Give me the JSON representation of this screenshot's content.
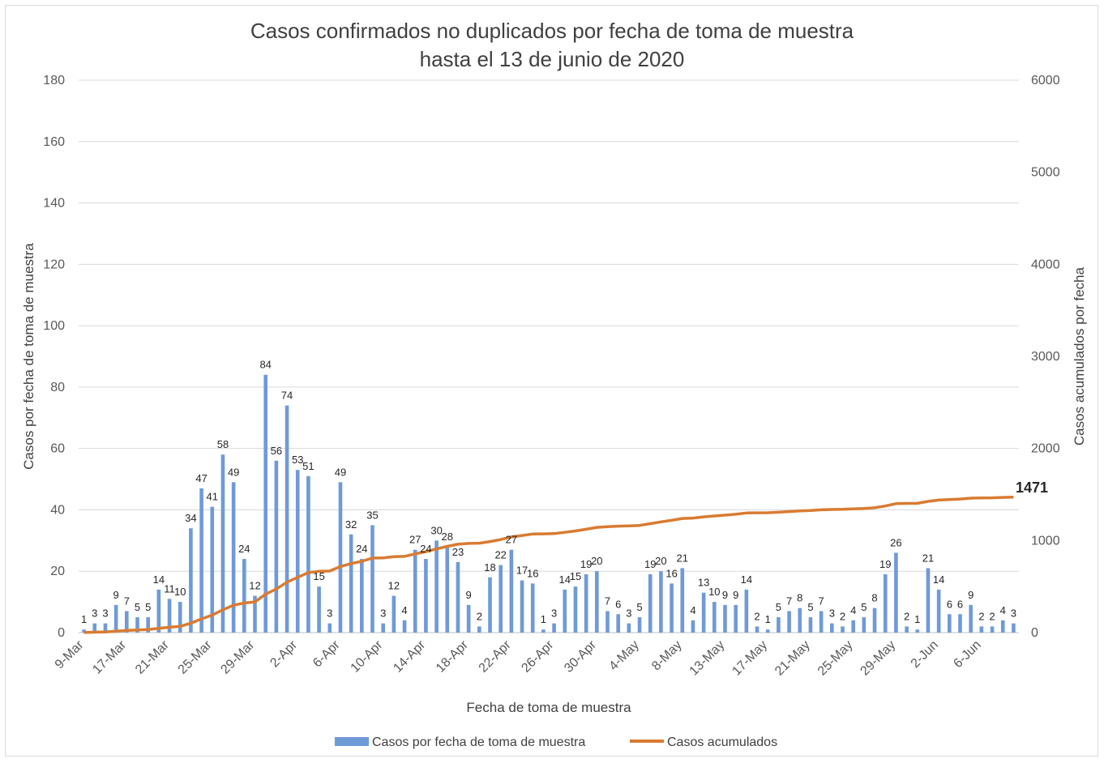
{
  "chart_data": {
    "type": "bar+line",
    "title": [
      "Casos confirmados no duplicados por fecha de toma de muestra",
      "hasta el 13 de junio de 2020"
    ],
    "xlabel": "Fecha de toma de muestra",
    "ylabel_left": "Casos por fecha de toma de muestra",
    "ylabel_right": "Casos acumulados por fecha",
    "ylim_left": [
      0,
      180
    ],
    "yticks_left": [
      "0",
      "20",
      "40",
      "60",
      "80",
      "100",
      "120",
      "140",
      "160",
      "180"
    ],
    "ylim_right": [
      0,
      6000
    ],
    "yticks_right": [
      "0",
      "1000",
      "2000",
      "3000",
      "4000",
      "5000",
      "6000"
    ],
    "x_tick_labels": [
      "9-Mar",
      "17-Mar",
      "21-Mar",
      "25-Mar",
      "29-Mar",
      "2-Apr",
      "6-Apr",
      "10-Apr",
      "14-Apr",
      "18-Apr",
      "22-Apr",
      "26-Apr",
      "30-Apr",
      "4-May",
      "8-May",
      "13-May",
      "17-May",
      "21-May",
      "25-May",
      "29-May",
      "2-Jun",
      "6-Jun"
    ],
    "x_tick_index": [
      0,
      4,
      8,
      12,
      16,
      20,
      24,
      28,
      32,
      36,
      40,
      44,
      48,
      52,
      56,
      60,
      64,
      68,
      72,
      76,
      80,
      84
    ],
    "grid": true,
    "legend_position": "bottom",
    "series": [
      {
        "name": "Casos por fecha de toma de muestra",
        "type": "bar",
        "axis": "left",
        "color": "#6f9ad8",
        "values": [
          1,
          3,
          3,
          9,
          7,
          5,
          5,
          14,
          11,
          10,
          34,
          47,
          41,
          58,
          49,
          24,
          12,
          84,
          56,
          74,
          53,
          51,
          15,
          3,
          49,
          32,
          24,
          35,
          3,
          12,
          4,
          27,
          24,
          30,
          28,
          23,
          9,
          2,
          18,
          22,
          27,
          17,
          16,
          1,
          3,
          14,
          15,
          19,
          20,
          7,
          6,
          3,
          5,
          19,
          20,
          16,
          21,
          4,
          13,
          10,
          9,
          9,
          14,
          2,
          1,
          5,
          7,
          8,
          5,
          7,
          3,
          2,
          4,
          5,
          8,
          19,
          26,
          2,
          1,
          21,
          14,
          6,
          6,
          9,
          2,
          2,
          4,
          3
        ],
        "data_labels": [
          "1",
          "3",
          "3",
          "9",
          "7",
          "5",
          "5",
          "14",
          "11",
          "10",
          "34",
          "47",
          "41",
          "58",
          "49",
          "24",
          "12",
          "84",
          "56",
          "74",
          "53",
          "51",
          "15",
          "3",
          "49",
          "32",
          "24",
          "35",
          "3",
          "12",
          "4",
          "27",
          "24",
          "30",
          "28",
          "23",
          "9",
          "2",
          "18",
          "22",
          "27",
          "17",
          "16",
          "1",
          "3",
          "14",
          "15",
          "19",
          "20",
          "7",
          "6",
          "3",
          "5",
          "19",
          "20",
          "16",
          "21",
          "4",
          "13",
          "10",
          "9",
          "9",
          "14",
          "2",
          "1",
          "5",
          "7",
          "8",
          "5",
          "7",
          "3",
          "2",
          "4",
          "5",
          "8",
          "19",
          "26",
          "2",
          "1",
          "21",
          "14",
          "6",
          "6",
          "9",
          "2",
          "2",
          "4",
          "3"
        ]
      },
      {
        "name": "Casos acumulados",
        "type": "line",
        "axis": "right",
        "color": "#d97b32",
        "end_label": "1471"
      }
    ]
  }
}
